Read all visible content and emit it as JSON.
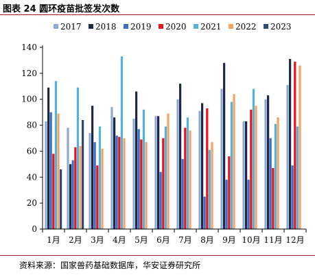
{
  "figure": {
    "title": "图表 24 圆环疫苗批签发次数",
    "source": "资料来源：国家兽药基础数据库，华安证券研究所",
    "colors": {
      "2017": "#8fa8dc",
      "2018": "#1e2a44",
      "2019": "#3d6fc4",
      "2020": "#e8141c",
      "2021": "#4fb4d8",
      "2022": "#f4a460",
      "2023": "#2c4a78"
    }
  },
  "chart_data": {
    "type": "bar",
    "categories": [
      "1月",
      "2月",
      "3月",
      "4月",
      "5月",
      "6月",
      "7月",
      "8月",
      "9月",
      "10月",
      "11月",
      "12月"
    ],
    "series": [
      {
        "name": "2017",
        "values": [
          83,
          78,
          74,
          94,
          85,
          87,
          100,
          91,
          108,
          83,
          100,
          111
        ]
      },
      {
        "name": "2018",
        "values": [
          109,
          50,
          95,
          86,
          106,
          87,
          112,
          97,
          128,
          83,
          103,
          131
        ]
      },
      {
        "name": "2019",
        "values": [
          90,
          53,
          67,
          72,
          77,
          44,
          54,
          25,
          38,
          38,
          70,
          49
        ]
      },
      {
        "name": "2020",
        "values": [
          58,
          63,
          49,
          71,
          69,
          70,
          78,
          93,
          56,
          92,
          47,
          129
        ]
      },
      {
        "name": "2021",
        "values": [
          114,
          109,
          79,
          133,
          92,
          79,
          86,
          61,
          98,
          108,
          81,
          79
        ]
      },
      {
        "name": "2022",
        "values": [
          89,
          64,
          62,
          70,
          67,
          89,
          76,
          67,
          104,
          95,
          86,
          126
        ]
      },
      {
        "name": "2023",
        "values": [
          46,
          84,
          null,
          null,
          null,
          null,
          null,
          null,
          null,
          null,
          null,
          null
        ]
      }
    ],
    "ylim": [
      0,
      140
    ],
    "yticks": [
      0,
      20,
      40,
      60,
      80,
      100,
      120,
      140
    ],
    "legend_position": "top",
    "grid": false
  }
}
